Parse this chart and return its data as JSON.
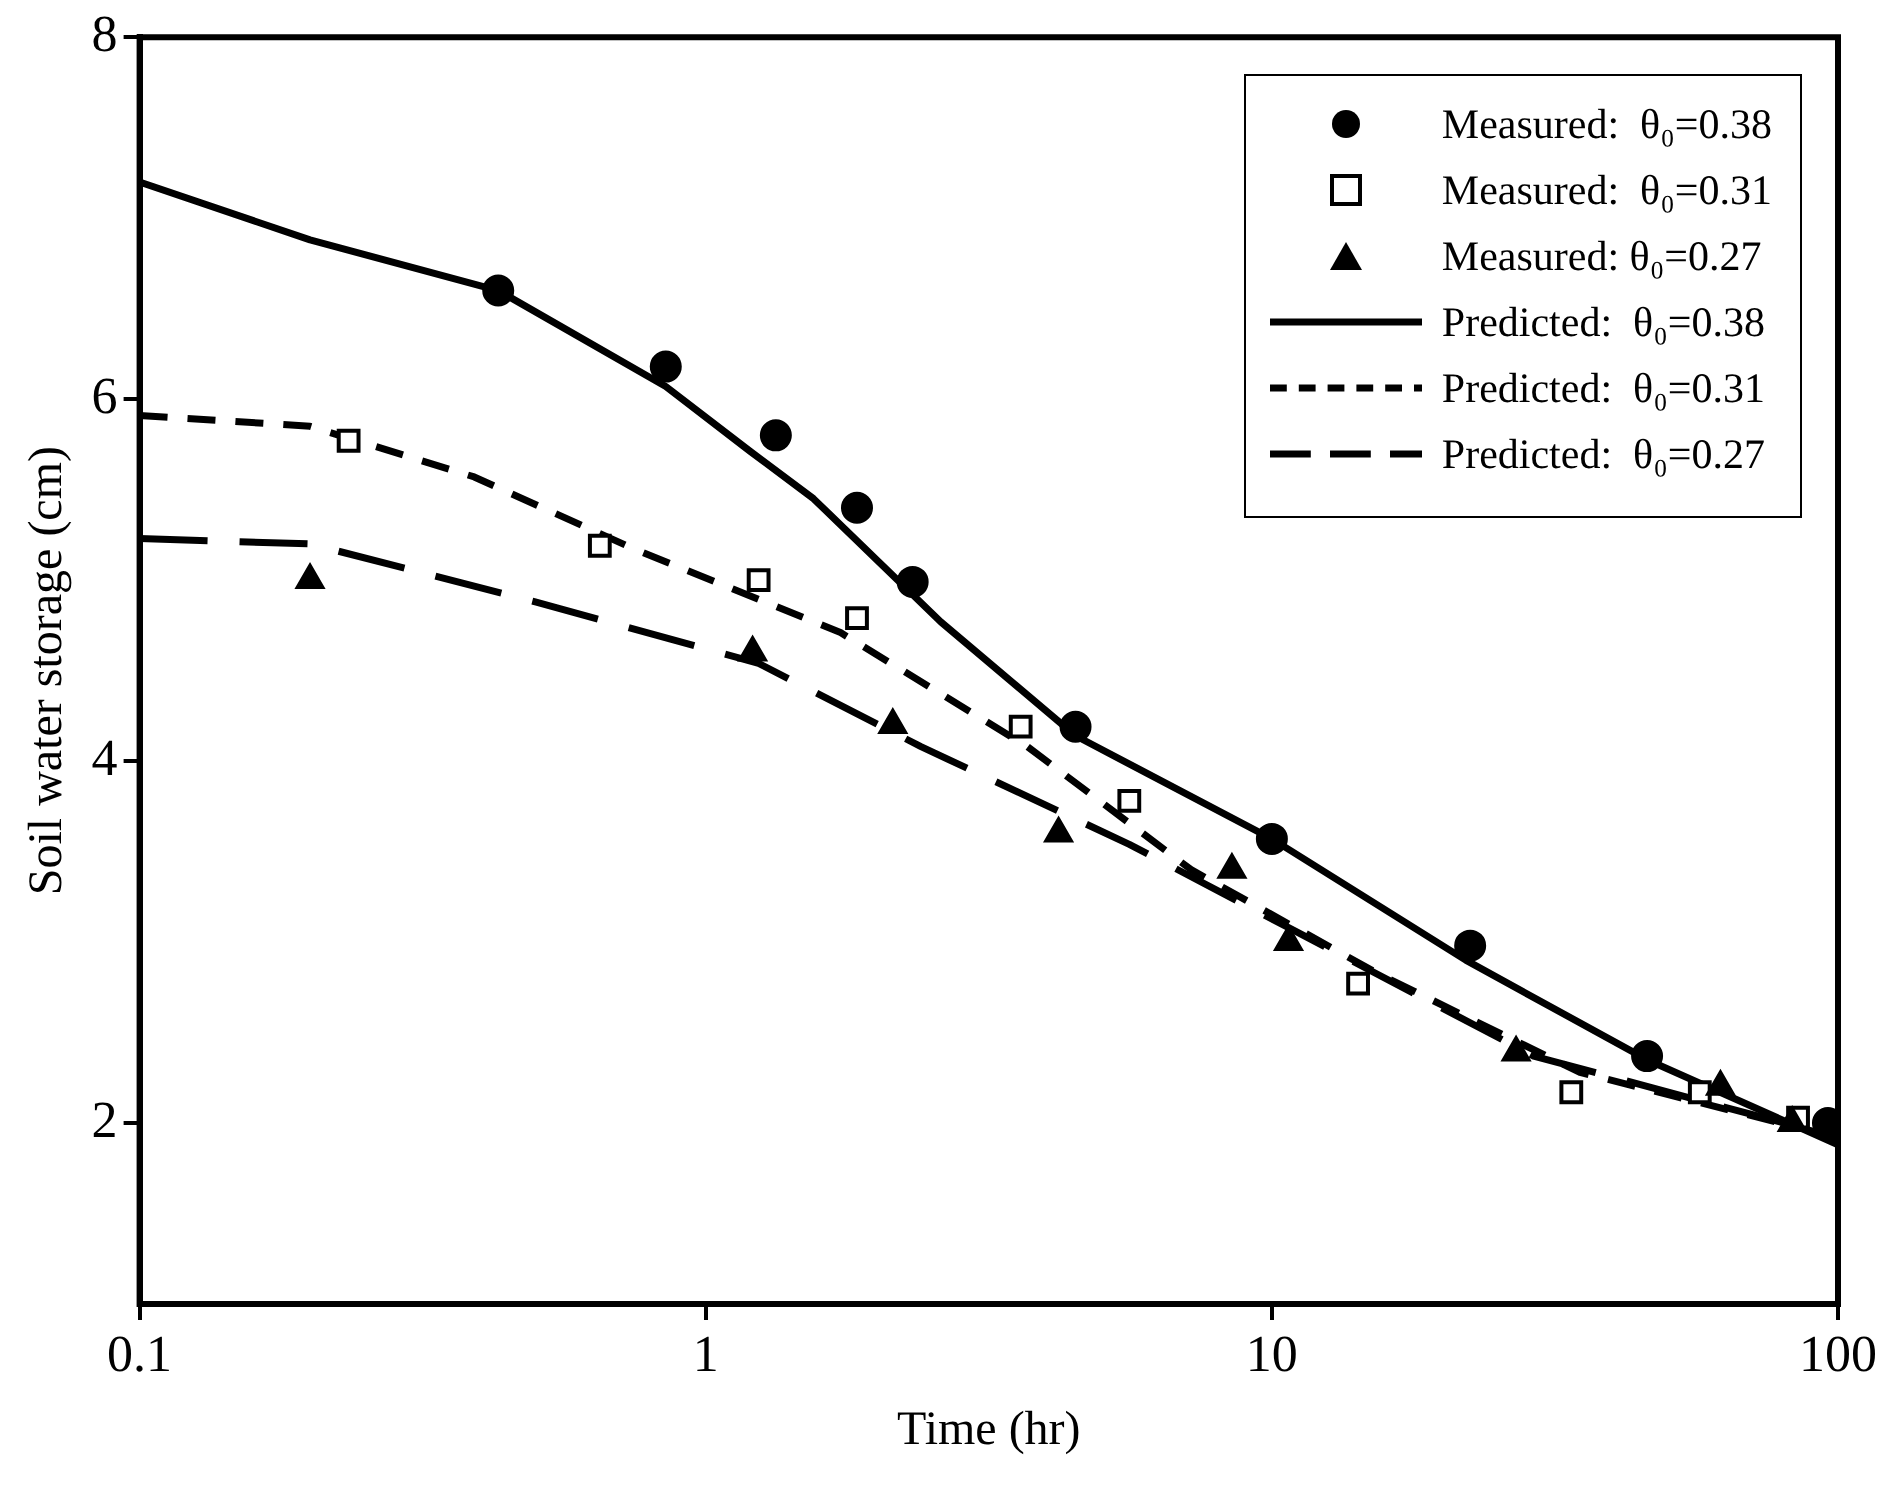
{
  "chart_data": {
    "type": "scatter",
    "xlabel": "Time (hr)",
    "ylabel": "Soil water storage (cm)",
    "xlim": [
      0.1,
      100
    ],
    "xticks": [
      0.1,
      1,
      10,
      100
    ],
    "ylim": [
      1,
      8
    ],
    "yticks": [
      2,
      4,
      6,
      8
    ],
    "log": "x",
    "grid": false,
    "legend": "top right",
    "series": [
      {
        "name": "Measured:  θ₀=0.38",
        "marker": "circle",
        "color": "#000000",
        "x": [
          0.43,
          0.85,
          1.33,
          1.85,
          2.32,
          4.5,
          10,
          22.4,
          46,
          96
        ],
        "values": [
          6.6,
          6.18,
          5.8,
          5.4,
          4.99,
          4.19,
          3.57,
          2.98,
          2.37,
          2.0
        ]
      },
      {
        "name": "Measured:  θ₀=0.31",
        "marker": "square",
        "color": "#000000",
        "x": [
          0.234,
          0.65,
          1.24,
          1.85,
          3.6,
          5.6,
          14.2,
          33.8,
          57,
          85
        ],
        "values": [
          5.77,
          5.19,
          5.0,
          4.79,
          4.19,
          3.78,
          2.77,
          2.17,
          2.17,
          2.03
        ]
      },
      {
        "name": "Measured: θ₀=0.27",
        "marker": "triangle",
        "color": "#000000",
        "x": [
          0.2,
          1.21,
          2.14,
          4.2,
          8.5,
          10.7,
          27,
          62,
          83
        ],
        "values": [
          5.0,
          4.6,
          4.2,
          3.6,
          3.4,
          3.0,
          2.39,
          2.2,
          2.0
        ]
      },
      {
        "name": "Predicted:  θ₀=0.38",
        "type": "line",
        "line_style": "solid",
        "color": "#000000",
        "x": [
          0.1,
          0.2,
          0.43,
          0.85,
          1.2,
          1.55,
          2.6,
          4.5,
          10,
          22,
          46,
          100
        ],
        "values": [
          7.2,
          6.88,
          6.6,
          6.07,
          5.71,
          5.45,
          4.77,
          4.14,
          3.57,
          2.9,
          2.35,
          1.88
        ]
      },
      {
        "name": "Predicted:  θ₀=0.31",
        "type": "line",
        "line_style": "dashed",
        "color": "#000000",
        "x": [
          0.1,
          0.2,
          0.39,
          0.75,
          1.73,
          3.7,
          7.2,
          15.3,
          35,
          100
        ],
        "values": [
          5.91,
          5.85,
          5.57,
          5.17,
          4.71,
          4.08,
          3.4,
          2.83,
          2.28,
          1.92
        ]
      },
      {
        "name": "Predicted:  θ₀=0.27",
        "type": "line",
        "line_style": "dashed",
        "color": "#000000",
        "x": [
          0.1,
          0.2,
          0.5,
          1.24,
          2.4,
          5.6,
          11,
          29,
          100
        ],
        "values": [
          5.23,
          5.2,
          4.88,
          4.54,
          4.08,
          3.54,
          3.06,
          2.37,
          1.92
        ]
      }
    ]
  }
}
